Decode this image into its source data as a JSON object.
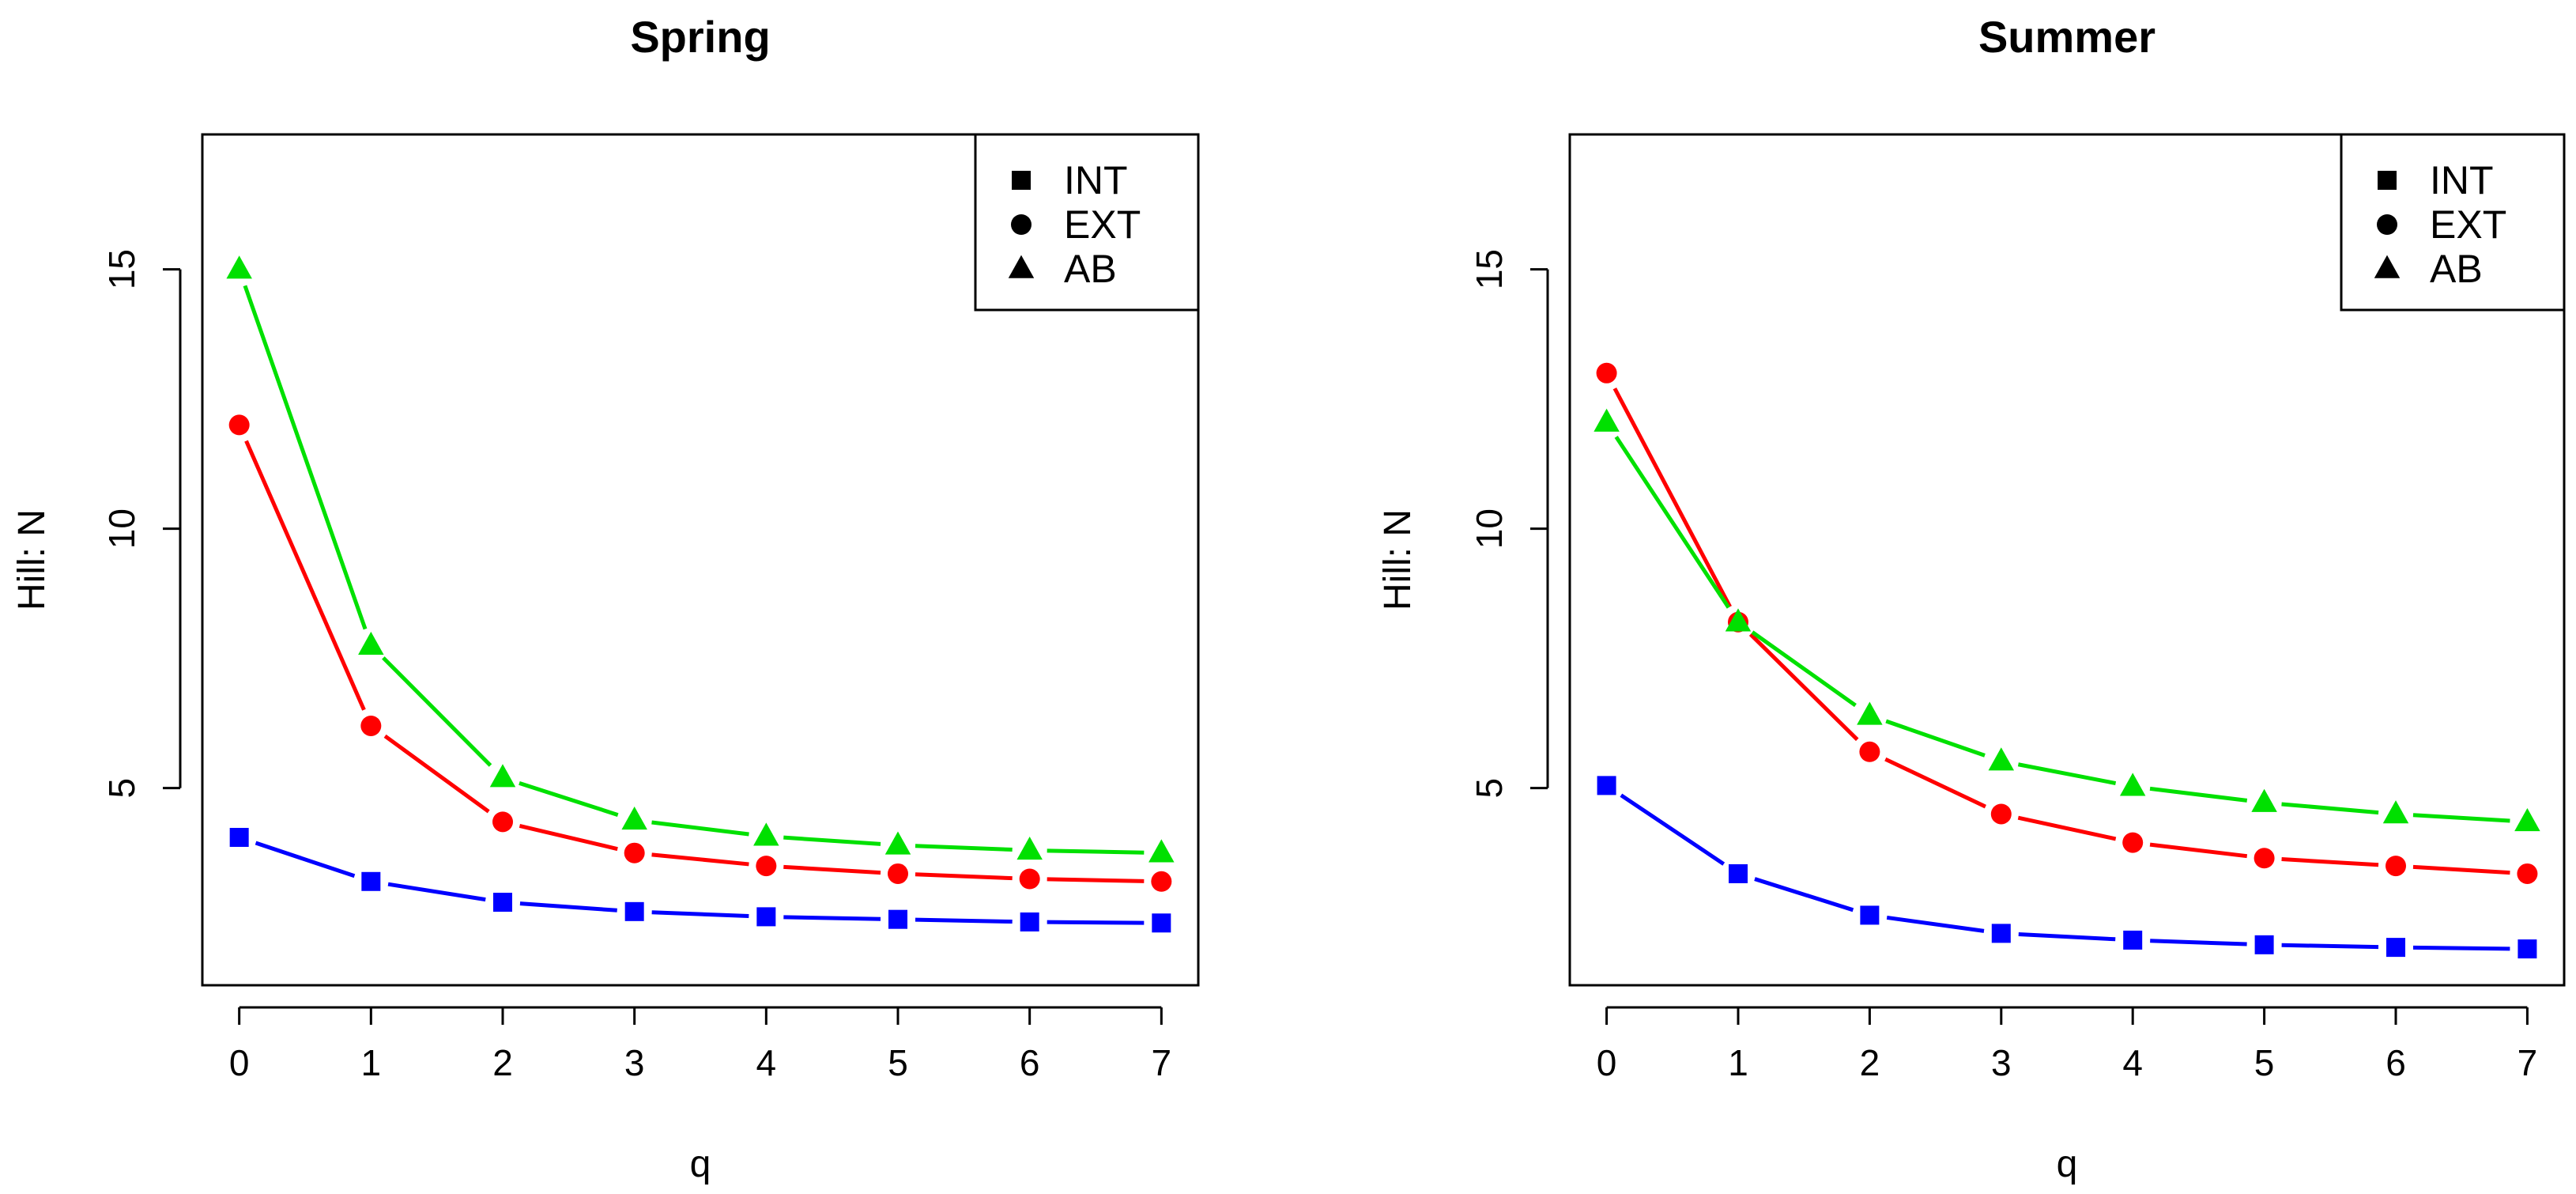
{
  "chart_data": [
    {
      "type": "line",
      "title": "Spring",
      "xlabel": "q",
      "ylabel": "Hill: N",
      "x": [
        0,
        1,
        2,
        3,
        4,
        5,
        6,
        7
      ],
      "xlim": [
        -0.28,
        7.28
      ],
      "ylim": [
        1.2,
        17.6
      ],
      "xticks": [
        0,
        1,
        2,
        3,
        4,
        5,
        6,
        7
      ],
      "yticks": [
        5,
        10,
        15
      ],
      "legend": {
        "position": "top-right",
        "entries": [
          "INT",
          "EXT",
          "AB"
        ]
      },
      "series": [
        {
          "name": "INT",
          "marker": "square",
          "color": "#0000FF",
          "values": [
            4.05,
            3.2,
            2.8,
            2.62,
            2.52,
            2.47,
            2.42,
            2.4
          ]
        },
        {
          "name": "EXT",
          "marker": "circle",
          "color": "#FF0000",
          "values": [
            12.0,
            6.2,
            4.35,
            3.75,
            3.5,
            3.35,
            3.25,
            3.2
          ]
        },
        {
          "name": "AB",
          "marker": "triangle",
          "color": "#00E000",
          "values": [
            15.0,
            7.75,
            5.2,
            4.38,
            4.07,
            3.9,
            3.8,
            3.75
          ]
        }
      ]
    },
    {
      "type": "line",
      "title": "Summer",
      "xlabel": "q",
      "ylabel": "Hill: N",
      "x": [
        0,
        1,
        2,
        3,
        4,
        5,
        6,
        7
      ],
      "xlim": [
        -0.28,
        7.28
      ],
      "ylim": [
        1.2,
        17.6
      ],
      "xticks": [
        0,
        1,
        2,
        3,
        4,
        5,
        6,
        7
      ],
      "yticks": [
        5,
        10,
        15
      ],
      "legend": {
        "position": "top-right",
        "entries": [
          "INT",
          "EXT",
          "AB"
        ]
      },
      "series": [
        {
          "name": "INT",
          "marker": "square",
          "color": "#0000FF",
          "values": [
            5.05,
            3.35,
            2.55,
            2.2,
            2.07,
            1.98,
            1.93,
            1.9
          ]
        },
        {
          "name": "EXT",
          "marker": "circle",
          "color": "#FF0000",
          "values": [
            13.0,
            8.2,
            5.7,
            4.5,
            3.95,
            3.65,
            3.5,
            3.35
          ]
        },
        {
          "name": "AB",
          "marker": "triangle",
          "color": "#00E000",
          "values": [
            12.05,
            8.2,
            6.4,
            5.52,
            5.03,
            4.72,
            4.5,
            4.35
          ]
        }
      ]
    }
  ]
}
